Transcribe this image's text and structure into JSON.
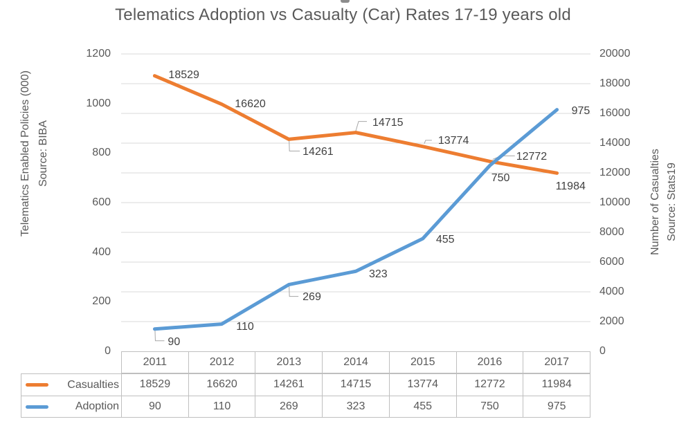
{
  "title": "Telematics Adoption vs Casualty (Car) Rates 17-19 years old",
  "left_axis": {
    "title_line1": "Telematics Enabled Policies (000)",
    "title_line2": "Source: BIBA",
    "ticks": [
      "1200",
      "1000",
      "800",
      "600",
      "400",
      "200",
      "0"
    ]
  },
  "right_axis": {
    "title_line1": "Number of Casualties",
    "title_line2": "Source: Stats19",
    "ticks": [
      "20000",
      "18000",
      "16000",
      "14000",
      "12000",
      "10000",
      "8000",
      "6000",
      "4000",
      "2000",
      "0"
    ]
  },
  "chart_data": {
    "type": "line",
    "categories": [
      "2011",
      "2012",
      "2013",
      "2014",
      "2015",
      "2016",
      "2017"
    ],
    "series": [
      {
        "name": "Casualties",
        "yaxis": "right",
        "color": "#ED7D31",
        "values": [
          18529,
          16620,
          14261,
          14715,
          13774,
          12772,
          11984
        ]
      },
      {
        "name": "Adoption",
        "yaxis": "left",
        "color": "#5B9BD5",
        "values": [
          90,
          110,
          269,
          323,
          455,
          750,
          975
        ]
      }
    ],
    "left_ylim": [
      0,
      1200
    ],
    "right_ylim": [
      0,
      20000
    ],
    "grid": true,
    "data_labels": true,
    "legend_position": "table-left"
  },
  "data_table": {
    "columns": [
      "2011",
      "2012",
      "2013",
      "2014",
      "2015",
      "2016",
      "2017"
    ],
    "rows": [
      {
        "label": "Casualties",
        "swatch_color": "#ED7D31",
        "values": [
          "18529",
          "16620",
          "14261",
          "14715",
          "13774",
          "12772",
          "11984"
        ]
      },
      {
        "label": "Adoption",
        "swatch_color": "#5B9BD5",
        "values": [
          "90",
          "110",
          "269",
          "323",
          "455",
          "750",
          "975"
        ]
      }
    ]
  },
  "colors": {
    "gridline": "#D9D9D9",
    "table_border": "#BFBFBF",
    "axis_text": "#595959",
    "label_text": "#404040",
    "leader_line": "#A6A6A6"
  }
}
